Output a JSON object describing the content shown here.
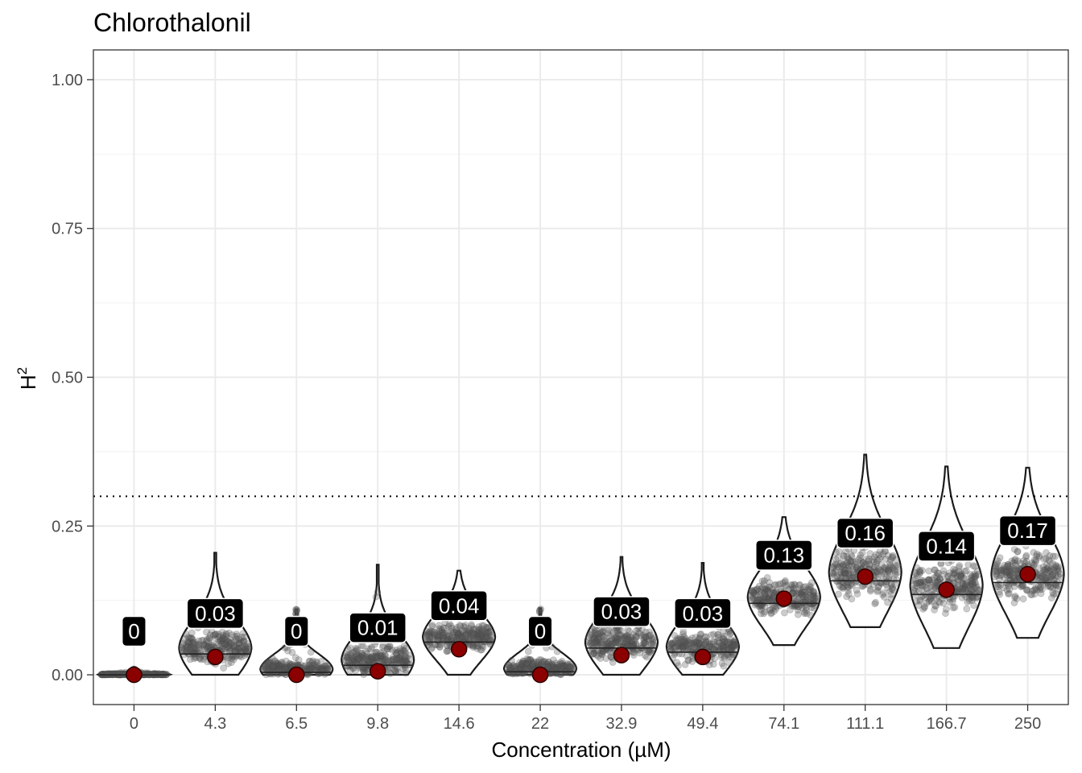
{
  "chart_data": {
    "type": "violin",
    "title": "Chlorothalonil",
    "xlabel": "Concentration (µM)",
    "ylabel": "H",
    "ylabel_superscript": "2",
    "categories": [
      "0",
      "4.3",
      "6.5",
      "9.8",
      "14.6",
      "22",
      "32.9",
      "49.4",
      "74.1",
      "111.1",
      "166.7",
      "250"
    ],
    "point_estimates": [
      0.0,
      0.03,
      0.0,
      0.006,
      0.043,
      0.0,
      0.033,
      0.03,
      0.128,
      0.165,
      0.143,
      0.169
    ],
    "point_labels": [
      "0",
      "0.03",
      "0",
      "0.01",
      "0.04",
      "0",
      "0.03",
      "0.03",
      "0.13",
      "0.16",
      "0.14",
      "0.17"
    ],
    "medians": [
      0.0,
      0.035,
      0.004,
      0.016,
      0.055,
      0.005,
      0.045,
      0.038,
      0.12,
      0.158,
      0.135,
      0.155
    ],
    "ranges": [
      [
        0.0,
        0.01
      ],
      [
        0.0,
        0.205
      ],
      [
        0.0,
        0.11
      ],
      [
        0.0,
        0.185
      ],
      [
        0.0,
        0.175
      ],
      [
        0.0,
        0.112
      ],
      [
        0.0,
        0.198
      ],
      [
        0.0,
        0.188
      ],
      [
        0.05,
        0.265
      ],
      [
        0.08,
        0.37
      ],
      [
        0.045,
        0.35
      ],
      [
        0.062,
        0.348
      ]
    ],
    "threshold_line": 0.3,
    "yticks": [
      "0.00",
      "0.25",
      "0.50",
      "0.75",
      "1.00"
    ],
    "ylim": [
      -0.05,
      1.05
    ],
    "grid": true,
    "legend": "none",
    "colors": {
      "point": "#8b0000",
      "label_bg": "#000000",
      "label_text": "#ffffff",
      "violin_outline": "#1a1a1a",
      "jitter": "#555555",
      "grid": "#ebebeb"
    }
  }
}
